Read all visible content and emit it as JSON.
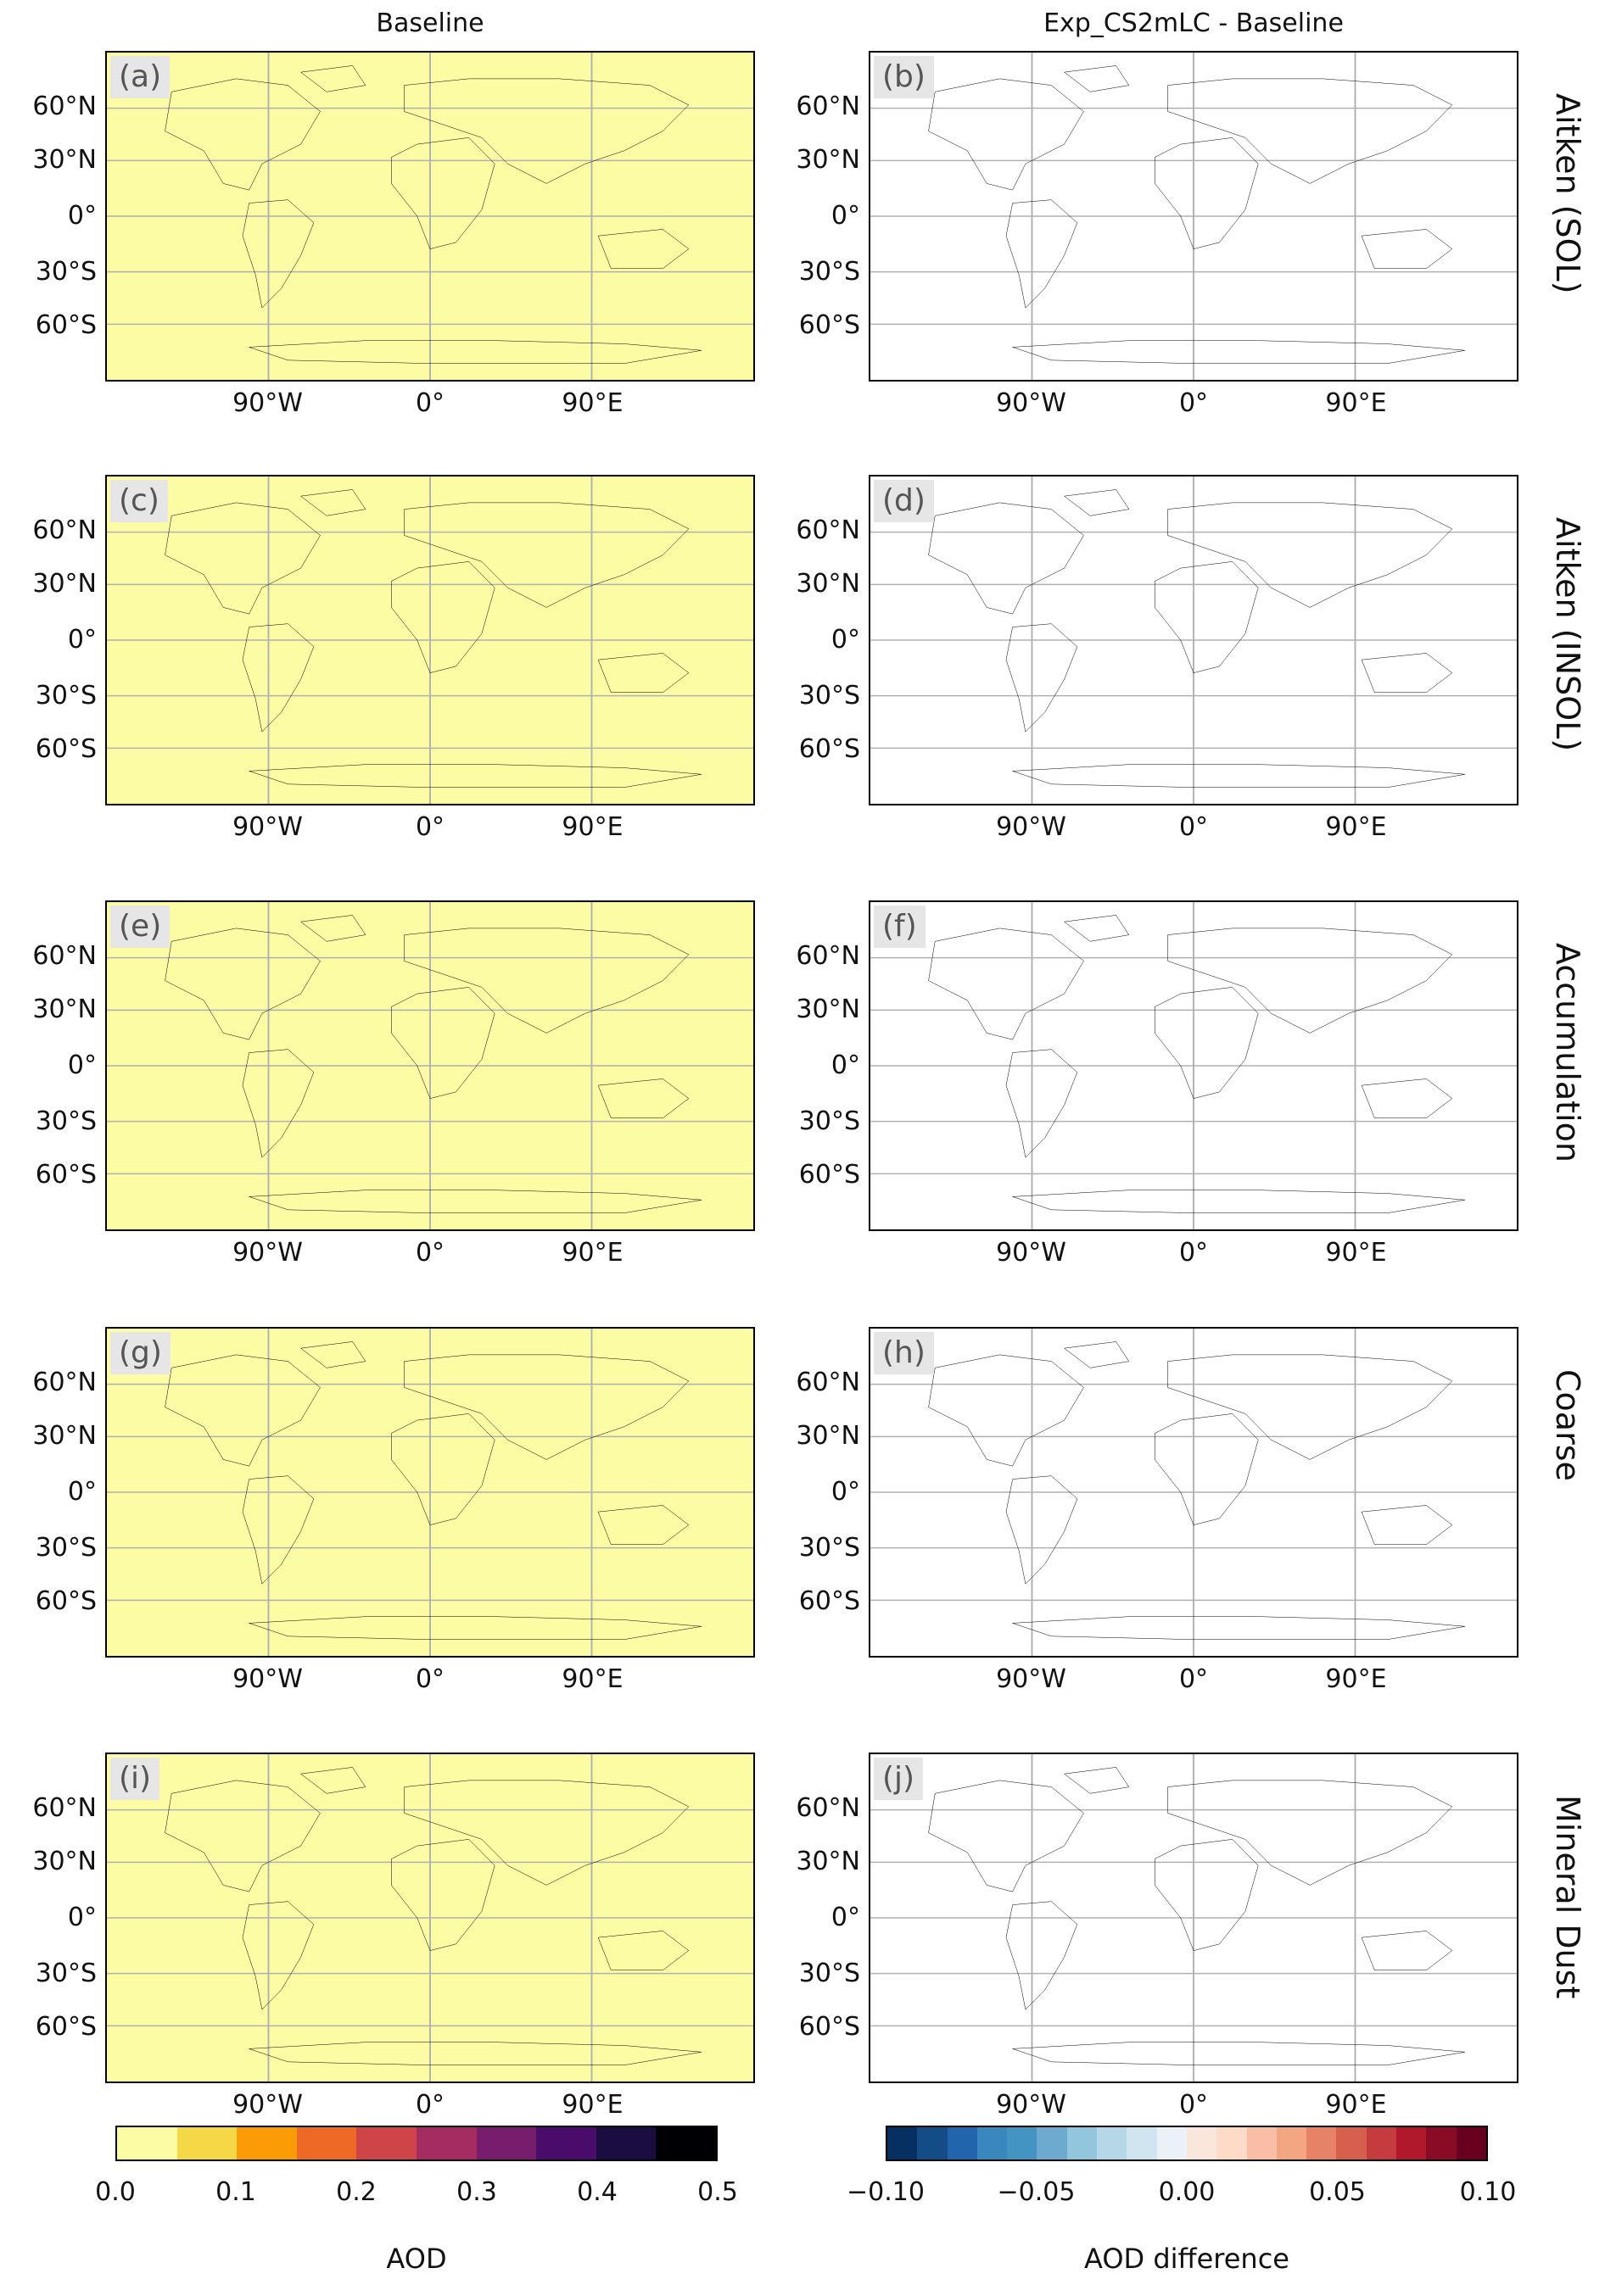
{
  "columns": [
    "Baseline",
    "Exp_CS2mLC - Baseline"
  ],
  "rows": [
    {
      "label": "Aitken (SOL)",
      "panels": [
        "(a)",
        "(b)"
      ]
    },
    {
      "label": "Aitken (INSOL)",
      "panels": [
        "(c)",
        "(d)"
      ]
    },
    {
      "label": "Accumulation",
      "panels": [
        "(e)",
        "(f)"
      ]
    },
    {
      "label": "Coarse",
      "panels": [
        "(g)",
        "(h)"
      ]
    },
    {
      "label": "Mineral Dust",
      "panels": [
        "(i)",
        "(j)"
      ]
    }
  ],
  "lat_ticks": [
    "60°N",
    "30°N",
    "0°",
    "30°S",
    "60°S"
  ],
  "lon_ticks": [
    "90°W",
    "0°",
    "90°E"
  ],
  "colorbar_aod": {
    "label": "AOD",
    "ticks": [
      "0.0",
      "0.1",
      "0.2",
      "0.3",
      "0.4",
      "0.5"
    ],
    "colors": [
      "#fcfca4",
      "#f6d746",
      "#fb9b06",
      "#ed6925",
      "#cf4446",
      "#a52c60",
      "#781c6d",
      "#4a0c6b",
      "#1b0c41",
      "#000004"
    ]
  },
  "colorbar_diff": {
    "label": "AOD difference",
    "ticks": [
      "−0.10",
      "−0.05",
      "0.00",
      "0.05",
      "0.10"
    ],
    "colors": [
      "#053061",
      "#134c87",
      "#2166ac",
      "#3a87bd",
      "#4393c3",
      "#6eaad0",
      "#92c5de",
      "#b6d7e8",
      "#d1e5f0",
      "#eaf2f7",
      "#fbe6dc",
      "#fddbc7",
      "#f8bfa4",
      "#f4a582",
      "#e58267",
      "#d6604d",
      "#c43c3c",
      "#b2182b",
      "#8a0b25",
      "#67001f"
    ]
  },
  "map_colors": {
    "aod_background": "#fcfca4",
    "diff_background": "#ffffff",
    "gridline": "#b0b0b0",
    "coastline": "#000000"
  }
}
